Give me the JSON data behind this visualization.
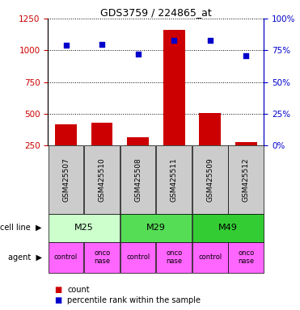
{
  "title": "GDS3759 / 224865_at",
  "samples": [
    "GSM425507",
    "GSM425510",
    "GSM425508",
    "GSM425511",
    "GSM425509",
    "GSM425512"
  ],
  "counts": [
    420,
    430,
    315,
    1160,
    510,
    280
  ],
  "percentile_ranks": [
    79,
    80,
    72,
    83,
    83,
    71
  ],
  "left_ylim": [
    250,
    1250
  ],
  "right_ylim": [
    0,
    100
  ],
  "left_yticks": [
    250,
    500,
    750,
    1000,
    1250
  ],
  "right_yticks": [
    0,
    25,
    50,
    75,
    100
  ],
  "bar_color": "#cc0000",
  "dot_color": "#0000cc",
  "bar_bottom": 250,
  "cell_lines": [
    {
      "label": "M25",
      "span": [
        0,
        2
      ],
      "color": "#ccffcc"
    },
    {
      "label": "M29",
      "span": [
        2,
        4
      ],
      "color": "#55dd55"
    },
    {
      "label": "M49",
      "span": [
        4,
        6
      ],
      "color": "#33cc33"
    }
  ],
  "agents": [
    "control",
    "onconase",
    "control",
    "onconase",
    "control",
    "onconase"
  ],
  "agent_color": "#ff66ff",
  "sample_bg_color": "#cccccc",
  "left_tick_color": "#cc0000",
  "right_tick_color": "#0000cc",
  "grid_color": "#000000",
  "legend_items": [
    {
      "label": "count",
      "color": "#cc0000"
    },
    {
      "label": "percentile rank within the sample",
      "color": "#0000cc"
    }
  ]
}
